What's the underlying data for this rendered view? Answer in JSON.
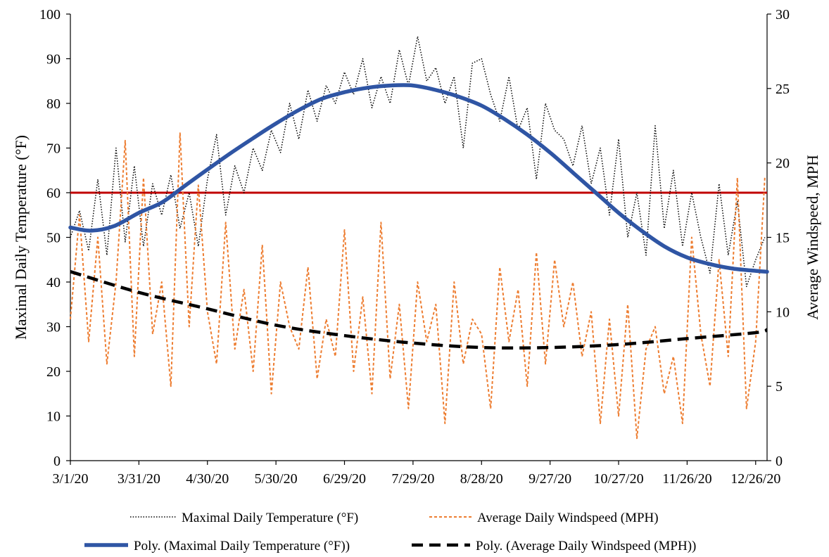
{
  "chart_data": {
    "type": "line",
    "title": "",
    "xlabel": "",
    "ylabel": "Maximal Daily Temperature (°F)",
    "y2label": "Average Windspeed, MPH",
    "x_start": "3/1/20",
    "x_end": "12/31/20",
    "x_ticks": [
      "3/1/20",
      "3/31/20",
      "4/30/20",
      "5/30/20",
      "6/29/20",
      "7/29/20",
      "8/28/20",
      "9/27/20",
      "10/27/20",
      "11/26/20",
      "12/26/20"
    ],
    "ylim": [
      0,
      100
    ],
    "y_ticks": [
      0,
      10,
      20,
      30,
      40,
      50,
      60,
      70,
      80,
      90,
      100
    ],
    "y2lim": [
      0,
      30
    ],
    "y2_ticks": [
      0,
      5,
      10,
      15,
      20,
      25,
      30
    ],
    "grid": false,
    "legend_position": "bottom",
    "reference_line": {
      "y": 60,
      "axis": "left",
      "color": "#c00000"
    },
    "series": [
      {
        "name": "Maximal Daily Temperature (°F)",
        "axis": "left",
        "style": "dotted",
        "color": "#000000",
        "x": [
          "3/1/20",
          "3/5/20",
          "3/9/20",
          "3/13/20",
          "3/17/20",
          "3/21/20",
          "3/25/20",
          "3/29/20",
          "4/2/20",
          "4/6/20",
          "4/10/20",
          "4/14/20",
          "4/18/20",
          "4/22/20",
          "4/26/20",
          "4/30/20",
          "5/4/20",
          "5/8/20",
          "5/12/20",
          "5/16/20",
          "5/20/20",
          "5/24/20",
          "5/28/20",
          "6/1/20",
          "6/5/20",
          "6/9/20",
          "6/13/20",
          "6/17/20",
          "6/21/20",
          "6/25/20",
          "6/29/20",
          "7/3/20",
          "7/7/20",
          "7/11/20",
          "7/15/20",
          "7/19/20",
          "7/23/20",
          "7/27/20",
          "7/31/20",
          "8/4/20",
          "8/8/20",
          "8/12/20",
          "8/16/20",
          "8/20/20",
          "8/24/20",
          "8/28/20",
          "9/1/20",
          "9/5/20",
          "9/9/20",
          "9/13/20",
          "9/17/20",
          "9/21/20",
          "9/25/20",
          "9/29/20",
          "10/3/20",
          "10/7/20",
          "10/11/20",
          "10/15/20",
          "10/19/20",
          "10/23/20",
          "10/27/20",
          "10/31/20",
          "11/4/20",
          "11/8/20",
          "11/12/20",
          "11/16/20",
          "11/20/20",
          "11/24/20",
          "11/28/20",
          "12/2/20",
          "12/6/20",
          "12/10/20",
          "12/14/20",
          "12/18/20",
          "12/22/20",
          "12/26/20",
          "12/30/20"
        ],
        "values": [
          50,
          56,
          47,
          63,
          46,
          70,
          49,
          66,
          48,
          62,
          55,
          64,
          52,
          60,
          48,
          63,
          73,
          55,
          66,
          60,
          70,
          65,
          74,
          69,
          80,
          72,
          83,
          76,
          84,
          80,
          87,
          82,
          90,
          79,
          86,
          80,
          92,
          84,
          95,
          85,
          88,
          80,
          86,
          70,
          89,
          90,
          82,
          76,
          86,
          74,
          79,
          63,
          80,
          74,
          72,
          66,
          75,
          62,
          70,
          55,
          72,
          50,
          60,
          46,
          75,
          52,
          65,
          48,
          60,
          50,
          42,
          62,
          46,
          58,
          39,
          45,
          50
        ]
      },
      {
        "name": "Average Daily Windspeed (MPH)",
        "axis": "right",
        "style": "dashed",
        "color": "#ed7d31",
        "x": [
          "3/1/20",
          "3/5/20",
          "3/9/20",
          "3/13/20",
          "3/17/20",
          "3/21/20",
          "3/25/20",
          "3/29/20",
          "4/2/20",
          "4/6/20",
          "4/10/20",
          "4/14/20",
          "4/18/20",
          "4/22/20",
          "4/26/20",
          "4/30/20",
          "5/4/20",
          "5/8/20",
          "5/12/20",
          "5/16/20",
          "5/20/20",
          "5/24/20",
          "5/28/20",
          "6/1/20",
          "6/5/20",
          "6/9/20",
          "6/13/20",
          "6/17/20",
          "6/21/20",
          "6/25/20",
          "6/29/20",
          "7/3/20",
          "7/7/20",
          "7/11/20",
          "7/15/20",
          "7/19/20",
          "7/23/20",
          "7/27/20",
          "7/31/20",
          "8/4/20",
          "8/8/20",
          "8/12/20",
          "8/16/20",
          "8/20/20",
          "8/24/20",
          "8/28/20",
          "9/1/20",
          "9/5/20",
          "9/9/20",
          "9/13/20",
          "9/17/20",
          "9/21/20",
          "9/25/20",
          "9/29/20",
          "10/3/20",
          "10/7/20",
          "10/11/20",
          "10/15/20",
          "10/19/20",
          "10/23/20",
          "10/27/20",
          "10/31/20",
          "11/4/20",
          "11/8/20",
          "11/12/20",
          "11/16/20",
          "11/20/20",
          "11/24/20",
          "11/28/20",
          "12/2/20",
          "12/6/20",
          "12/10/20",
          "12/14/20",
          "12/18/20",
          "12/22/20",
          "12/26/20",
          "12/30/20"
        ],
        "values": [
          9.5,
          16.5,
          8.0,
          15.0,
          6.5,
          12.0,
          21.5,
          7.0,
          19.0,
          8.5,
          12.0,
          5.0,
          22.0,
          9.0,
          18.5,
          10.0,
          6.5,
          16.0,
          7.5,
          11.5,
          6.0,
          14.5,
          4.5,
          12.0,
          9.0,
          7.5,
          13.0,
          5.5,
          9.5,
          7.0,
          15.5,
          6.0,
          11.0,
          4.5,
          16.0,
          5.5,
          10.5,
          3.5,
          12.0,
          8.0,
          10.5,
          2.5,
          12.0,
          6.5,
          9.5,
          8.5,
          3.5,
          13.0,
          8.0,
          11.5,
          5.0,
          14.0,
          6.5,
          13.5,
          9.0,
          12.0,
          7.0,
          10.0,
          2.5,
          9.5,
          3.0,
          10.5,
          1.5,
          7.5,
          9.0,
          4.5,
          7.0,
          2.5,
          15.0,
          8.5,
          5.0,
          13.5,
          7.0,
          19.0,
          3.5,
          8.0,
          19.0
        ]
      },
      {
        "name": "Poly. (Maximal Daily Temperature (°F))",
        "axis": "left",
        "style": "solid-thick",
        "color": "#2f55a4",
        "x": [
          "3/1/20",
          "3/10/20",
          "3/20/20",
          "3/31/20",
          "4/10/20",
          "4/20/20",
          "4/30/20",
          "5/10/20",
          "5/20/20",
          "5/30/20",
          "6/9/20",
          "6/19/20",
          "6/29/20",
          "7/9/20",
          "7/19/20",
          "7/29/20",
          "8/8/20",
          "8/18/20",
          "8/28/20",
          "9/7/20",
          "9/17/20",
          "9/27/20",
          "10/7/20",
          "10/17/20",
          "10/27/20",
          "11/6/20",
          "11/16/20",
          "11/26/20",
          "12/6/20",
          "12/16/20",
          "12/26/20",
          "12/31/20"
        ],
        "values": [
          52.2,
          51.5,
          52.5,
          55.5,
          57.8,
          61.5,
          65.2,
          68.8,
          72.2,
          75.5,
          78.5,
          81.0,
          82.5,
          83.5,
          84.0,
          84.0,
          83.0,
          81.5,
          79.5,
          76.5,
          73.0,
          69.0,
          64.5,
          60.0,
          55.5,
          51.5,
          48.0,
          45.5,
          44.0,
          43.0,
          42.5,
          42.3
        ]
      },
      {
        "name": "Poly. (Average Daily Windspeed (MPH))",
        "axis": "right",
        "style": "dashed-thick",
        "color": "#000000",
        "x": [
          "3/1/20",
          "3/31/20",
          "4/30/20",
          "5/30/20",
          "6/29/20",
          "7/29/20",
          "8/28/20",
          "9/27/20",
          "10/27/20",
          "11/26/20",
          "12/26/20",
          "12/31/20"
        ],
        "values": [
          12.7,
          11.3,
          10.2,
          9.1,
          8.4,
          7.9,
          7.6,
          7.6,
          7.8,
          8.2,
          8.6,
          8.8
        ]
      }
    ]
  }
}
